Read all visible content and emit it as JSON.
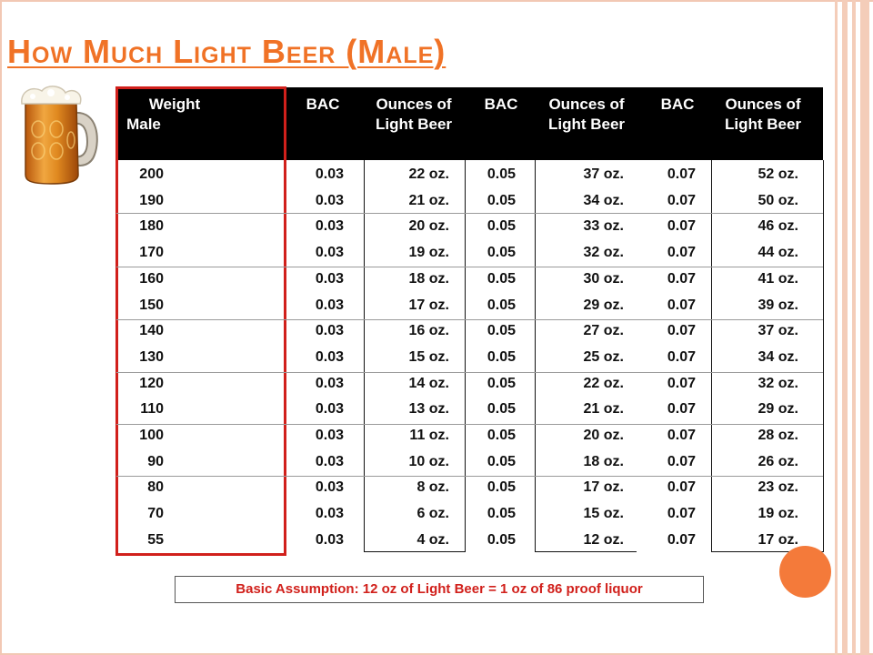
{
  "slide": {
    "title": "How Much Light Beer (Male)",
    "note": "Basic Assumption:  12 oz of Light Beer = 1 oz of 86 proof liquor"
  },
  "colors": {
    "title": "#f07226",
    "header_band": "#000000",
    "weight_outline": "#d1201b",
    "note_text": "#d1201b",
    "accent_dot": "#f47a3a"
  },
  "icons": [
    "beer-mug-icon"
  ],
  "table": {
    "headers": [
      {
        "line1": "Weight",
        "line2": "Male"
      },
      {
        "line1": "BAC",
        "line2": ""
      },
      {
        "line1": "Ounces of",
        "line2": "Light Beer"
      },
      {
        "line1": "BAC",
        "line2": ""
      },
      {
        "line1": "Ounces of",
        "line2": "Light Beer"
      },
      {
        "line1": "BAC",
        "line2": ""
      },
      {
        "line1": "Ounces of",
        "line2": "Light Beer"
      }
    ],
    "rows": [
      [
        "200",
        "0.03",
        "22 oz.",
        "0.05",
        "37 oz.",
        "0.07",
        "52 oz."
      ],
      [
        "190",
        "0.03",
        "21 oz.",
        "0.05",
        "34 oz.",
        "0.07",
        "50 oz."
      ],
      [
        "180",
        "0.03",
        "20 oz.",
        "0.05",
        "33 oz.",
        "0.07",
        "46 oz."
      ],
      [
        "170",
        "0.03",
        "19 oz.",
        "0.05",
        "32 oz.",
        "0.07",
        "44 oz."
      ],
      [
        "160",
        "0.03",
        "18 oz.",
        "0.05",
        "30 oz.",
        "0.07",
        "41 oz."
      ],
      [
        "150",
        "0.03",
        "17 oz.",
        "0.05",
        "29 oz.",
        "0.07",
        "39 oz."
      ],
      [
        "140",
        "0.03",
        "16 oz.",
        "0.05",
        "27 oz.",
        "0.07",
        "37 oz."
      ],
      [
        "130",
        "0.03",
        "15 oz.",
        "0.05",
        "25 oz.",
        "0.07",
        "34 oz."
      ],
      [
        "120",
        "0.03",
        "14 oz.",
        "0.05",
        "22 oz.",
        "0.07",
        "32 oz."
      ],
      [
        "110",
        "0.03",
        "13 oz.",
        "0.05",
        "21 oz.",
        "0.07",
        "29 oz."
      ],
      [
        "100",
        "0.03",
        "11 oz.",
        "0.05",
        "20 oz.",
        "0.07",
        "28 oz."
      ],
      [
        "90",
        "0.03",
        "10 oz.",
        "0.05",
        "18 oz.",
        "0.07",
        "26 oz."
      ],
      [
        "80",
        "0.03",
        "8 oz.",
        "0.05",
        "17 oz.",
        "0.07",
        "23 oz."
      ],
      [
        "70",
        "0.03",
        "6 oz.",
        "0.05",
        "15 oz.",
        "0.07",
        "19 oz."
      ],
      [
        "55",
        "0.03",
        "4 oz.",
        "0.05",
        "12 oz.",
        "0.07",
        "17 oz."
      ]
    ]
  }
}
